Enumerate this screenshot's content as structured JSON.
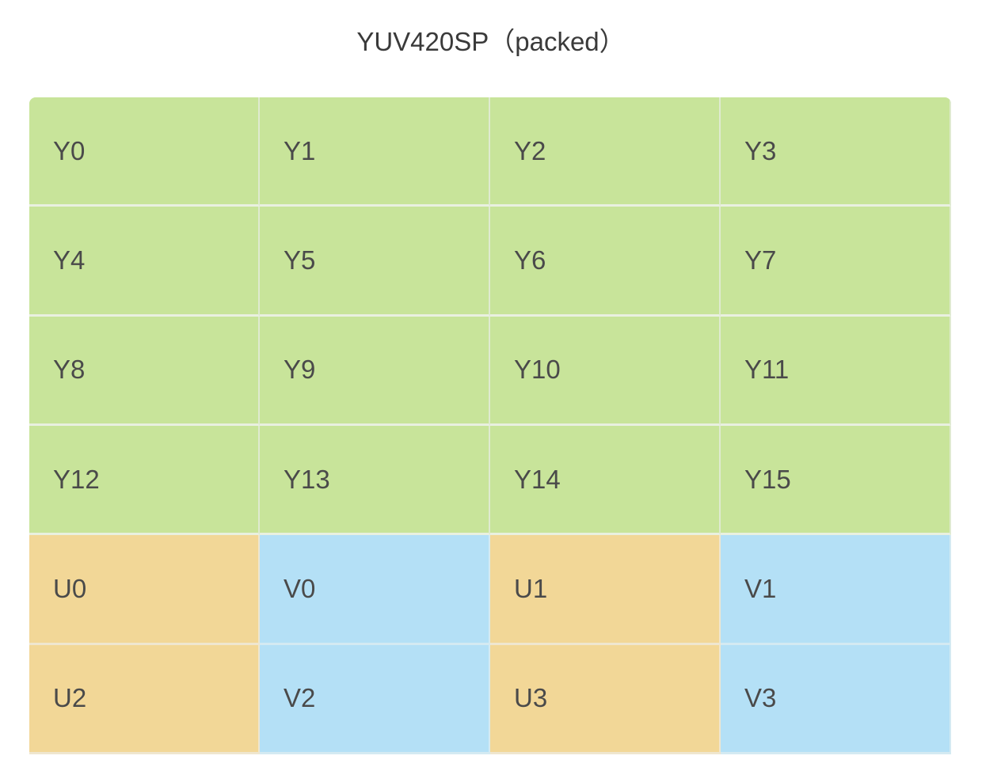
{
  "header": {
    "title": "YUV420SP（packed）"
  },
  "table": {
    "rows": [
      [
        "Y0",
        "Y1",
        "Y2",
        "Y3"
      ],
      [
        "Y4",
        "Y5",
        "Y6",
        "Y7"
      ],
      [
        "Y8",
        "Y9",
        "Y10",
        "Y11"
      ],
      [
        "Y12",
        "Y13",
        "Y14",
        "Y15"
      ],
      [
        "U0",
        "V0",
        "U1",
        "V1"
      ],
      [
        "U2",
        "V2",
        "U3",
        "V3"
      ]
    ]
  }
}
